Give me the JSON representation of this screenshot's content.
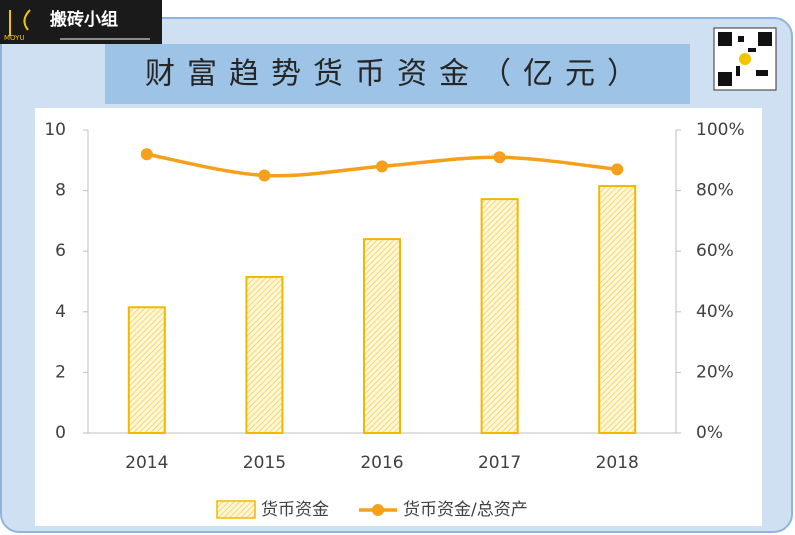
{
  "logo": {
    "text": "搬砖小组",
    "sub": "MOYU"
  },
  "chart_data": {
    "type": "combo",
    "title": "财富趋势货币资金（亿元）",
    "categories": [
      "2014",
      "2015",
      "2016",
      "2017",
      "2018"
    ],
    "series": [
      {
        "name": "货币资金",
        "type": "bar",
        "color": "#f2b800",
        "values": [
          4.15,
          5.15,
          6.4,
          7.72,
          8.15
        ]
      },
      {
        "name": "货币资金/总资产",
        "type": "line",
        "color": "#f5a01a",
        "axis": "y2",
        "values": [
          92,
          85,
          88,
          91,
          87
        ]
      }
    ],
    "ylim": [
      0,
      10
    ],
    "yticks": [
      0,
      2,
      4,
      6,
      8,
      10
    ],
    "y2lim": [
      0,
      100
    ],
    "y2ticks": [
      {
        "value": 0,
        "label": "0%"
      },
      {
        "value": 20,
        "label": "20%"
      },
      {
        "value": 40,
        "label": "40%"
      },
      {
        "value": 60,
        "label": "60%"
      },
      {
        "value": 80,
        "label": "80%"
      },
      {
        "value": 100,
        "label": "100%"
      }
    ],
    "legend": "bottom"
  }
}
